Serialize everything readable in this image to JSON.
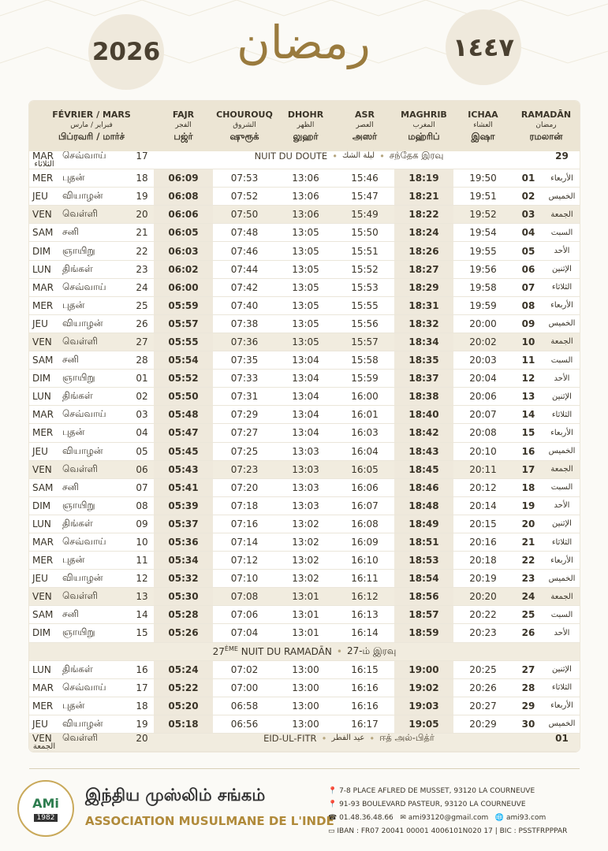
{
  "header": {
    "year": "2026",
    "calligraphy": "رمضان",
    "hijri_year": "١٤٤٧"
  },
  "table": {
    "columns": [
      {
        "fr": "FÉVRIER / MARS",
        "ar": "فبراير / مارس",
        "ta": "பிப்ரவரி / மார்ச்"
      },
      {
        "fr": "FAJR",
        "ar": "الفجر",
        "ta": "பஜ்ர்"
      },
      {
        "fr": "CHOUROUQ",
        "ar": "الشروق",
        "ta": "ஷுரூக்"
      },
      {
        "fr": "DHOHR",
        "ar": "الظهر",
        "ta": "லுஹர்"
      },
      {
        "fr": "ASR",
        "ar": "العصر",
        "ta": "அஸர்"
      },
      {
        "fr": "MAGHRIB",
        "ar": "المغرب",
        "ta": "மஹ்ரிப்"
      },
      {
        "fr": "ICHAA",
        "ar": "العشاء",
        "ta": "இஷா"
      },
      {
        "fr": "RAMADĀN",
        "ar": "رمضان",
        "ta": "ரமலான்"
      }
    ],
    "rows": [
      {
        "day_fr": "MAR",
        "day_ta": "செவ்வாய்",
        "date": "17",
        "note": [
          "NUIT DU DOUTE",
          "ليلة الشك",
          "சந்தேக இரவு"
        ],
        "ramadan": "29",
        "day_ar": "الثلاثاء"
      },
      [
        "MER",
        "புதன்",
        "18",
        "06:09",
        "07:53",
        "13:06",
        "15:46",
        "18:19",
        "19:50",
        "01",
        "الأربعاء"
      ],
      [
        "JEU",
        "வியாழன்",
        "19",
        "06:08",
        "07:52",
        "13:06",
        "15:47",
        "18:21",
        "19:51",
        "02",
        "الخميس"
      ],
      [
        "VEN",
        "வெள்ளி",
        "20",
        "06:06",
        "07:50",
        "13:06",
        "15:49",
        "18:22",
        "19:52",
        "03",
        "الجمعة"
      ],
      [
        "SAM",
        "சனி",
        "21",
        "06:05",
        "07:48",
        "13:05",
        "15:50",
        "18:24",
        "19:54",
        "04",
        "السبت"
      ],
      [
        "DIM",
        "ஞாயிறு",
        "22",
        "06:03",
        "07:46",
        "13:05",
        "15:51",
        "18:26",
        "19:55",
        "05",
        "الأحد"
      ],
      [
        "LUN",
        "திங்கள்",
        "23",
        "06:02",
        "07:44",
        "13:05",
        "15:52",
        "18:27",
        "19:56",
        "06",
        "الإثنين"
      ],
      [
        "MAR",
        "செவ்வாய்",
        "24",
        "06:00",
        "07:42",
        "13:05",
        "15:53",
        "18:29",
        "19:58",
        "07",
        "الثلاثاء"
      ],
      [
        "MER",
        "புதன்",
        "25",
        "05:59",
        "07:40",
        "13:05",
        "15:55",
        "18:31",
        "19:59",
        "08",
        "الأربعاء"
      ],
      [
        "JEU",
        "வியாழன்",
        "26",
        "05:57",
        "07:38",
        "13:05",
        "15:56",
        "18:32",
        "20:00",
        "09",
        "الخميس"
      ],
      [
        "VEN",
        "வெள்ளி",
        "27",
        "05:55",
        "07:36",
        "13:05",
        "15:57",
        "18:34",
        "20:02",
        "10",
        "الجمعة"
      ],
      [
        "SAM",
        "சனி",
        "28",
        "05:54",
        "07:35",
        "13:04",
        "15:58",
        "18:35",
        "20:03",
        "11",
        "السبت"
      ],
      [
        "DIM",
        "ஞாயிறு",
        "01",
        "05:52",
        "07:33",
        "13:04",
        "15:59",
        "18:37",
        "20:04",
        "12",
        "الأحد"
      ],
      [
        "LUN",
        "திங்கள்",
        "02",
        "05:50",
        "07:31",
        "13:04",
        "16:00",
        "18:38",
        "20:06",
        "13",
        "الإثنين"
      ],
      [
        "MAR",
        "செவ்வாய்",
        "03",
        "05:48",
        "07:29",
        "13:04",
        "16:01",
        "18:40",
        "20:07",
        "14",
        "الثلاثاء"
      ],
      [
        "MER",
        "புதன்",
        "04",
        "05:47",
        "07:27",
        "13:04",
        "16:03",
        "18:42",
        "20:08",
        "15",
        "الأربعاء"
      ],
      [
        "JEU",
        "வியாழன்",
        "05",
        "05:45",
        "07:25",
        "13:03",
        "16:04",
        "18:43",
        "20:10",
        "16",
        "الخميس"
      ],
      [
        "VEN",
        "வெள்ளி",
        "06",
        "05:43",
        "07:23",
        "13:03",
        "16:05",
        "18:45",
        "20:11",
        "17",
        "الجمعة"
      ],
      [
        "SAM",
        "சனி",
        "07",
        "05:41",
        "07:20",
        "13:03",
        "16:06",
        "18:46",
        "20:12",
        "18",
        "السبت"
      ],
      [
        "DIM",
        "ஞாயிறு",
        "08",
        "05:39",
        "07:18",
        "13:03",
        "16:07",
        "18:48",
        "20:14",
        "19",
        "الأحد"
      ],
      [
        "LUN",
        "திங்கள்",
        "09",
        "05:37",
        "07:16",
        "13:02",
        "16:08",
        "18:49",
        "20:15",
        "20",
        "الإثنين"
      ],
      [
        "MAR",
        "செவ்வாய்",
        "10",
        "05:36",
        "07:14",
        "13:02",
        "16:09",
        "18:51",
        "20:16",
        "21",
        "الثلاثاء"
      ],
      [
        "MER",
        "புதன்",
        "11",
        "05:34",
        "07:12",
        "13:02",
        "16:10",
        "18:53",
        "20:18",
        "22",
        "الأربعاء"
      ],
      [
        "JEU",
        "வியாழன்",
        "12",
        "05:32",
        "07:10",
        "13:02",
        "16:11",
        "18:54",
        "20:19",
        "23",
        "الخميس"
      ],
      [
        "VEN",
        "வெள்ளி",
        "13",
        "05:30",
        "07:08",
        "13:01",
        "16:12",
        "18:56",
        "20:20",
        "24",
        "الجمعة"
      ],
      [
        "SAM",
        "சனி",
        "14",
        "05:28",
        "07:06",
        "13:01",
        "16:13",
        "18:57",
        "20:22",
        "25",
        "السبت"
      ],
      [
        "DIM",
        "ஞாயிறு",
        "15",
        "05:26",
        "07:04",
        "13:01",
        "16:14",
        "18:59",
        "20:23",
        "26",
        "الأحد"
      ],
      {
        "note": [
          "27",
          "ÈME",
          "NUIT DU RAMADĀN",
          "27-ம் இரவு"
        ]
      },
      [
        "LUN",
        "திங்கள்",
        "16",
        "05:24",
        "07:02",
        "13:00",
        "16:15",
        "19:00",
        "20:25",
        "27",
        "الإثنين"
      ],
      [
        "MAR",
        "செவ்வாய்",
        "17",
        "05:22",
        "07:00",
        "13:00",
        "16:16",
        "19:02",
        "20:26",
        "28",
        "الثلاثاء"
      ],
      [
        "MER",
        "புதன்",
        "18",
        "05:20",
        "06:58",
        "13:00",
        "16:16",
        "19:03",
        "20:27",
        "29",
        "الأربعاء"
      ],
      [
        "JEU",
        "வியாழன்",
        "19",
        "05:18",
        "06:56",
        "13:00",
        "16:17",
        "19:05",
        "20:29",
        "30",
        "الخميس"
      ],
      {
        "day_fr": "VEN",
        "day_ta": "வெள்ளி",
        "date": "20",
        "note": [
          "EID-UL-FITR",
          "عيد الفطر",
          "ஈத் அல்-பித்ர்"
        ],
        "ramadan": "01",
        "day_ar": "الجمعة"
      }
    ]
  },
  "footer": {
    "logo": {
      "acronym": "AMi",
      "year": "1982"
    },
    "name_ta": "இந்திய முஸ்லிம் சங்கம்",
    "name_fr": "ASSOCIATION MUSULMANE DE L'INDE",
    "address_1": "7-8 PLACE AFLRED DE MUSSET, 93120 LA COURNEUVE",
    "address_2": "91-93 BOULEVARD PASTEUR, 93120 LA COURNEUVE",
    "phone": "01.48.36.48.66",
    "email": "ami93120@gmail.com",
    "website": "ami93.com",
    "iban": "IBAN : FR07 20041 00001 4006101N020 17 | BIC : PSSTFRPPPAR"
  }
}
